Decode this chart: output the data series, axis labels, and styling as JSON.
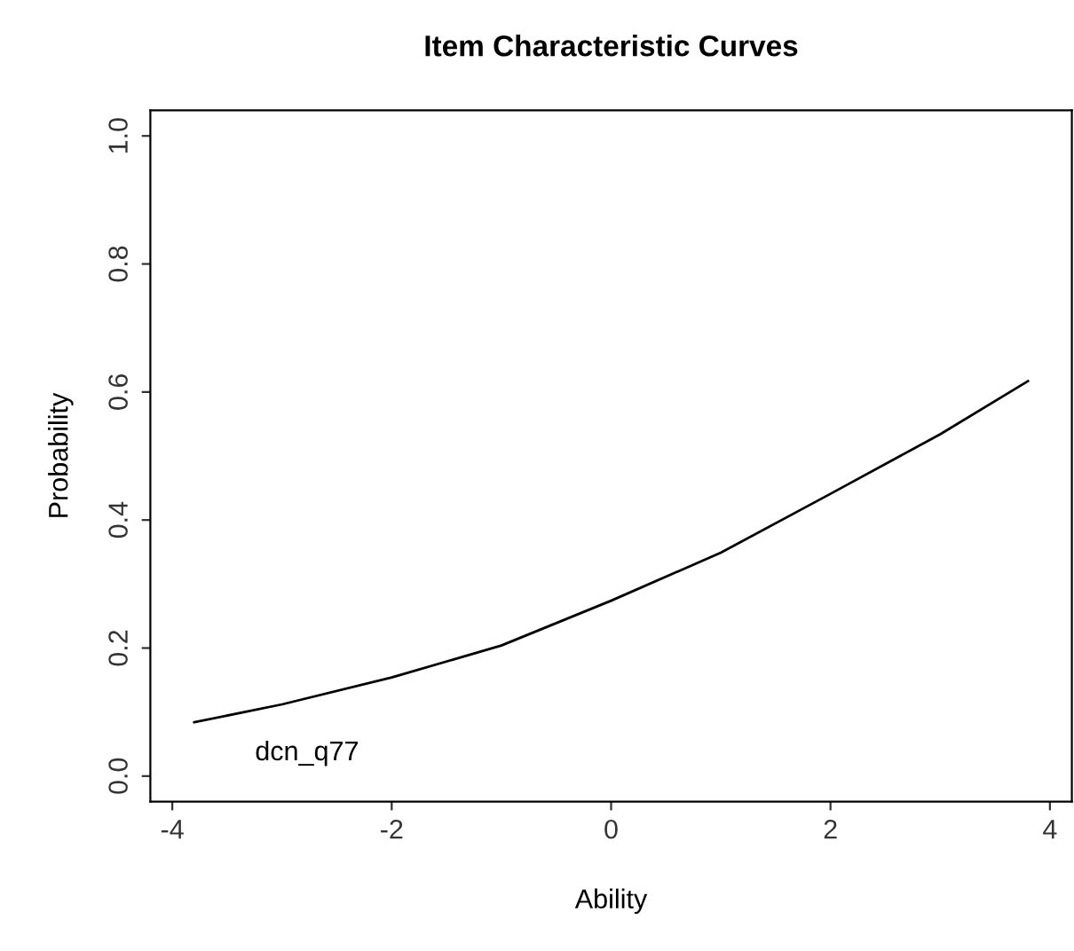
{
  "chart_data": {
    "type": "line",
    "title": "Item Characteristic Curves",
    "xlabel": "Ability",
    "ylabel": "Probability",
    "x": [
      -3.8,
      -3,
      -2,
      -1,
      0,
      1,
      2,
      3,
      3.8
    ],
    "series": [
      {
        "color": "#000000",
        "values": [
          0.084,
          0.112,
          0.154,
          0.204,
          0.274,
          0.349,
          0.441,
          0.534,
          0.617
        ]
      }
    ],
    "annotations": [
      "dcn_q77"
    ],
    "xlim": [
      -4.2,
      4.2
    ],
    "ylim": [
      -0.04,
      1.04
    ],
    "xticks": [
      -4,
      -2,
      0,
      2,
      4
    ],
    "yticks": [
      {
        "value": 0,
        "label": "0.0"
      },
      0.2,
      0.4,
      0.6,
      0.8,
      {
        "value": 1,
        "label": "1.0"
      }
    ],
    "grid": false,
    "legend": false,
    "marker": "none",
    "line_style": "solid"
  }
}
